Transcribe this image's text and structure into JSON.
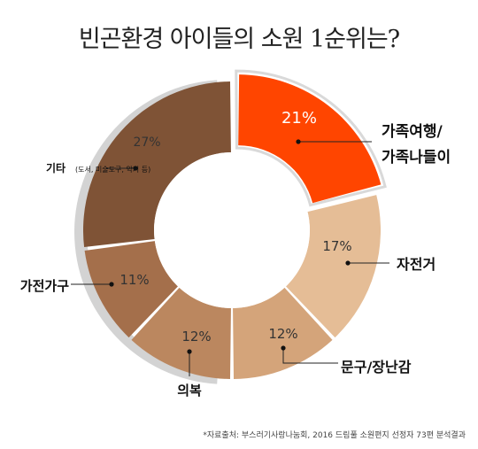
{
  "chart_data": {
    "type": "pie",
    "title": "빈곤환경 아이들의 소원 1순위는?",
    "slices": [
      {
        "label_line1": "가족여행/",
        "label_line2": "가족나들이",
        "value": 21,
        "value_label": "21%",
        "color": "#ff4500",
        "exploded": true
      },
      {
        "label_line1": "자전거",
        "value": 17,
        "value_label": "17%",
        "color": "#e5bd96"
      },
      {
        "label_line1": "문구/장난감",
        "value": 12,
        "value_label": "12%",
        "color": "#d4a47a"
      },
      {
        "label_line1": "의복",
        "value": 12,
        "value_label": "12%",
        "color": "#bb875f"
      },
      {
        "label_line1": "가전가구",
        "value": 11,
        "value_label": "11%",
        "color": "#a46f4b"
      },
      {
        "label_line1": "기타",
        "label_sub": "(도서, 미술도구, 악기 등)",
        "value": 27,
        "value_label": "27%",
        "color": "#7f5336"
      }
    ]
  },
  "source": "*자료출처: 부스러기사랑나눔회, 2016 드림풀 소원편지 선정자 73편 분석결과"
}
